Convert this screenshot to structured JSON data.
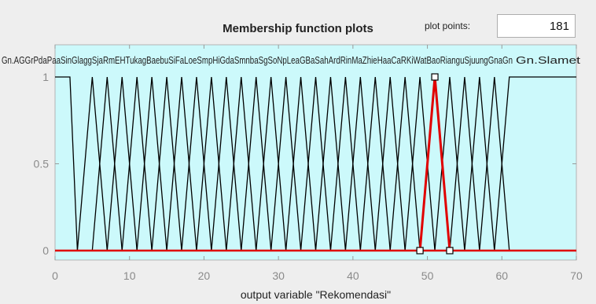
{
  "panel": {
    "title": "Membership function plots",
    "plot_points_label": "plot points:",
    "plot_points_value": "181"
  },
  "chart_data": {
    "type": "line",
    "title": "Membership function plots",
    "xlabel": "output variable \"Rekomendasi\"",
    "ylabel": "",
    "xlim": [
      0,
      70
    ],
    "ylim": [
      0,
      1
    ],
    "xticks": [
      "0",
      "10",
      "20",
      "30",
      "40",
      "50",
      "60",
      "70"
    ],
    "yticks": [
      "0",
      "0.5",
      "1"
    ],
    "grid": false,
    "colors": {
      "background": "#ccf9fb",
      "line": "#000000",
      "selected": "#e00000"
    },
    "series": [
      {
        "name": "Gn.Agung",
        "shape": "trapezoid",
        "points": [
          [
            0,
            1
          ],
          [
            2,
            1
          ],
          [
            3,
            0
          ]
        ]
      },
      {
        "shape": "triangle",
        "points": [
          [
            3,
            0
          ],
          [
            5,
            1
          ],
          [
            7,
            0
          ]
        ]
      },
      {
        "shape": "triangle",
        "points": [
          [
            5,
            0
          ],
          [
            7,
            1
          ],
          [
            9,
            0
          ]
        ]
      },
      {
        "shape": "triangle",
        "points": [
          [
            7,
            0
          ],
          [
            9,
            1
          ],
          [
            11,
            0
          ]
        ]
      },
      {
        "shape": "triangle",
        "points": [
          [
            9,
            0
          ],
          [
            11,
            1
          ],
          [
            13,
            0
          ]
        ]
      },
      {
        "shape": "triangle",
        "points": [
          [
            11,
            0
          ],
          [
            13,
            1
          ],
          [
            15,
            0
          ]
        ]
      },
      {
        "shape": "triangle",
        "points": [
          [
            13,
            0
          ],
          [
            15,
            1
          ],
          [
            17,
            0
          ]
        ]
      },
      {
        "shape": "triangle",
        "points": [
          [
            15,
            0
          ],
          [
            17,
            1
          ],
          [
            19,
            0
          ]
        ]
      },
      {
        "shape": "triangle",
        "points": [
          [
            17,
            0
          ],
          [
            19,
            1
          ],
          [
            21,
            0
          ]
        ]
      },
      {
        "shape": "triangle",
        "points": [
          [
            19,
            0
          ],
          [
            21,
            1
          ],
          [
            23,
            0
          ]
        ]
      },
      {
        "shape": "triangle",
        "points": [
          [
            21,
            0
          ],
          [
            23,
            1
          ],
          [
            25,
            0
          ]
        ]
      },
      {
        "shape": "triangle",
        "points": [
          [
            23,
            0
          ],
          [
            25,
            1
          ],
          [
            27,
            0
          ]
        ]
      },
      {
        "shape": "triangle",
        "points": [
          [
            25,
            0
          ],
          [
            27,
            1
          ],
          [
            29,
            0
          ]
        ]
      },
      {
        "shape": "triangle",
        "points": [
          [
            27,
            0
          ],
          [
            29,
            1
          ],
          [
            31,
            0
          ]
        ]
      },
      {
        "shape": "triangle",
        "points": [
          [
            29,
            0
          ],
          [
            31,
            1
          ],
          [
            33,
            0
          ]
        ]
      },
      {
        "shape": "triangle",
        "points": [
          [
            31,
            0
          ],
          [
            33,
            1
          ],
          [
            35,
            0
          ]
        ]
      },
      {
        "shape": "triangle",
        "points": [
          [
            33,
            0
          ],
          [
            35,
            1
          ],
          [
            37,
            0
          ]
        ]
      },
      {
        "shape": "triangle",
        "points": [
          [
            35,
            0
          ],
          [
            37,
            1
          ],
          [
            39,
            0
          ]
        ]
      },
      {
        "shape": "triangle",
        "points": [
          [
            37,
            0
          ],
          [
            39,
            1
          ],
          [
            41,
            0
          ]
        ]
      },
      {
        "shape": "triangle",
        "points": [
          [
            39,
            0
          ],
          [
            41,
            1
          ],
          [
            43,
            0
          ]
        ]
      },
      {
        "shape": "triangle",
        "points": [
          [
            41,
            0
          ],
          [
            43,
            1
          ],
          [
            45,
            0
          ]
        ]
      },
      {
        "shape": "triangle",
        "points": [
          [
            43,
            0
          ],
          [
            45,
            1
          ],
          [
            47,
            0
          ]
        ]
      },
      {
        "shape": "triangle",
        "points": [
          [
            45,
            0
          ],
          [
            47,
            1
          ],
          [
            49,
            0
          ]
        ]
      },
      {
        "shape": "triangle",
        "points": [
          [
            47,
            0
          ],
          [
            49,
            1
          ],
          [
            51,
            0
          ]
        ]
      },
      {
        "shape": "triangle",
        "points": [
          [
            49,
            0
          ],
          [
            51,
            1
          ],
          [
            53,
            0
          ]
        ],
        "selected": true
      },
      {
        "shape": "triangle",
        "points": [
          [
            51,
            0
          ],
          [
            53,
            1
          ],
          [
            55,
            0
          ]
        ]
      },
      {
        "shape": "triangle",
        "points": [
          [
            53,
            0
          ],
          [
            55,
            1
          ],
          [
            57,
            0
          ]
        ]
      },
      {
        "shape": "triangle",
        "points": [
          [
            55,
            0
          ],
          [
            57,
            1
          ],
          [
            59,
            0
          ]
        ]
      },
      {
        "shape": "triangle",
        "points": [
          [
            57,
            0
          ],
          [
            59,
            1
          ],
          [
            61,
            0
          ]
        ]
      },
      {
        "name": "Gn.Slamet",
        "shape": "trapezoid",
        "points": [
          [
            59,
            0
          ],
          [
            61,
            1
          ],
          [
            70,
            1
          ]
        ]
      }
    ],
    "label_text": "Gn.AGGrPdaPaaSinGlaggSjaRmEHTukagBaebuSiFaLoeSmpHiGdaSmnbaSgSoNpLeaGBaSahArdRinMaZhieHaaCaRKiWatBaoRianguSjuungGnaGn"
  }
}
